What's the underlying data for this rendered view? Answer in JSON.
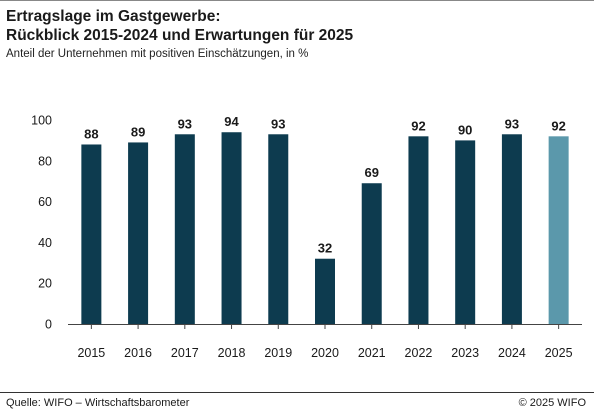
{
  "header": {
    "title_line1": "Ertragslage im Gastgewerbe:",
    "title_line2": "Rückblick 2015-2024 und Erwartungen für 2025",
    "subtitle": "Anteil der Unternehmen mit positiven Einschätzungen, in %"
  },
  "footer": {
    "source": "Quelle: WIFO – Wirtschaftsbarometer",
    "copyright": "© 2025 WIFO"
  },
  "colors": {
    "actual_bar": "#0d3b4f",
    "expectation_bar": "#5b98ab",
    "axis": "#444444"
  },
  "chart_data": {
    "type": "bar",
    "title": "Ertragslage im Gastgewerbe: Rückblick 2015-2024 und Erwartungen für 2025",
    "subtitle": "Anteil der Unternehmen mit positiven Einschätzungen, in %",
    "categories": [
      "2015",
      "2016",
      "2017",
      "2018",
      "2019",
      "2020",
      "2021",
      "2022",
      "2023",
      "2024",
      "2025"
    ],
    "values": [
      88,
      89,
      93,
      94,
      93,
      32,
      69,
      92,
      90,
      93,
      92
    ],
    "highlight_index": 10,
    "ylim": [
      0,
      100
    ],
    "yticks": [
      0,
      20,
      40,
      60,
      80,
      100
    ],
    "xlabel": "",
    "ylabel": "",
    "grid": false,
    "data_labels": true
  }
}
